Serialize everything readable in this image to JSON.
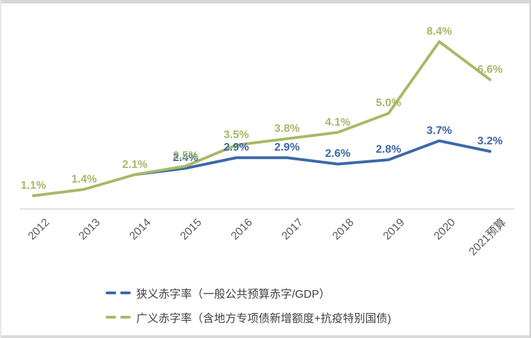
{
  "chart_data": {
    "type": "line",
    "title": "",
    "xlabel": "",
    "ylabel": "",
    "grid": false,
    "legend_position": "bottom",
    "axis_line_color": "#d9d9d9",
    "tick_label_color": "#595959",
    "categories": [
      "2012",
      "2013",
      "2014",
      "2015",
      "2016",
      "2017",
      "2018",
      "2019",
      "2020",
      "2021预算"
    ],
    "series": [
      {
        "name": "狭义赤字率（一般公共预算赤字/GDP）",
        "color": "#3c68a8",
        "values": [
          null,
          null,
          2.1,
          2.4,
          2.9,
          2.9,
          2.6,
          2.8,
          3.7,
          3.2
        ],
        "point_labels": [
          "",
          "",
          "",
          "2.4%",
          "2.9%",
          "2.9%",
          "2.6%",
          "2.8%",
          "3.7%",
          "3.2%"
        ]
      },
      {
        "name": "广义赤字率（含地方专项债新增额度+抗疫特别国债)",
        "color": "#a7b966",
        "values": [
          1.1,
          1.4,
          2.1,
          2.5,
          3.5,
          3.8,
          4.1,
          5.0,
          8.4,
          6.6
        ],
        "point_labels": [
          "1.1%",
          "1.4%",
          "2.1%",
          "2.5%",
          "3.5%",
          "3.8%",
          "4.1%",
          "5.0%",
          "8.4%",
          "6.6%"
        ]
      }
    ]
  }
}
